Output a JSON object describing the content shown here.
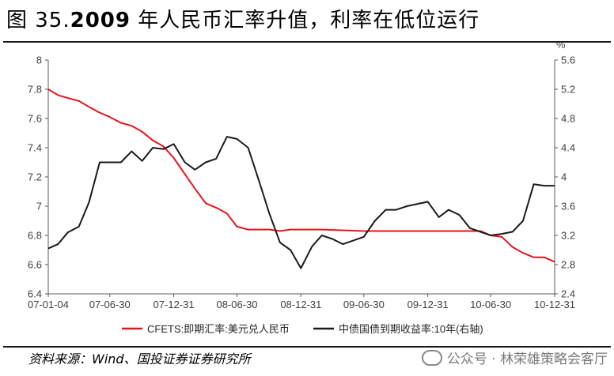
{
  "header": {
    "title_prefix": "图 35.",
    "title_year": "2009",
    "title_rest": " 年人民币汇率升值，利率在低位运行"
  },
  "footer": {
    "source": "资料来源：Wind、国投证券证券研究所",
    "watermark": "公众号 · 林荣雄策略会客厅"
  },
  "chart_data": {
    "type": "line",
    "x_ticks": [
      "07-01-04",
      "07-06-30",
      "07-12-31",
      "08-06-30",
      "08-12-31",
      "09-06-30",
      "09-12-31",
      "10-06-30",
      "10-12-31"
    ],
    "y_left": {
      "ticks": [
        "8",
        "7.8",
        "7.6",
        "7.4",
        "7.2",
        "7",
        "6.8",
        "6.6",
        "6.4"
      ],
      "range": [
        6.4,
        8.0
      ]
    },
    "y_right": {
      "unit": "%",
      "ticks": [
        "5.6",
        "5.2",
        "4.8",
        "4.4",
        "4",
        "3.6",
        "3.2",
        "2.8",
        "2.4"
      ],
      "range": [
        2.4,
        5.6
      ]
    },
    "grid": false,
    "legend_position": "bottom",
    "series": [
      {
        "name": "CFETS:即期汇率:美元兑人民币",
        "axis": "left",
        "color": "#e8141c",
        "points": [
          [
            "07-01-04",
            7.8
          ],
          [
            "07-02-01",
            7.76
          ],
          [
            "07-03-01",
            7.74
          ],
          [
            "07-04-02",
            7.72
          ],
          [
            "07-05-01",
            7.68
          ],
          [
            "07-06-01",
            7.64
          ],
          [
            "07-06-30",
            7.61
          ],
          [
            "07-08-01",
            7.57
          ],
          [
            "07-09-01",
            7.55
          ],
          [
            "07-10-01",
            7.51
          ],
          [
            "07-11-01",
            7.45
          ],
          [
            "07-12-01",
            7.41
          ],
          [
            "07-12-31",
            7.33
          ],
          [
            "08-02-01",
            7.22
          ],
          [
            "08-03-01",
            7.12
          ],
          [
            "08-04-01",
            7.02
          ],
          [
            "08-05-01",
            6.99
          ],
          [
            "08-06-01",
            6.95
          ],
          [
            "08-06-30",
            6.86
          ],
          [
            "08-08-01",
            6.84
          ],
          [
            "08-09-01",
            6.84
          ],
          [
            "08-10-01",
            6.84
          ],
          [
            "08-11-01",
            6.83
          ],
          [
            "08-12-01",
            6.84
          ],
          [
            "08-12-31",
            6.84
          ],
          [
            "09-03-01",
            6.84
          ],
          [
            "09-06-30",
            6.83
          ],
          [
            "09-09-01",
            6.83
          ],
          [
            "09-12-31",
            6.83
          ],
          [
            "10-03-01",
            6.83
          ],
          [
            "10-06-01",
            6.83
          ],
          [
            "10-06-30",
            6.8
          ],
          [
            "10-08-01",
            6.79
          ],
          [
            "10-09-01",
            6.72
          ],
          [
            "10-10-01",
            6.68
          ],
          [
            "10-11-01",
            6.65
          ],
          [
            "10-12-01",
            6.65
          ],
          [
            "10-12-31",
            6.62
          ]
        ]
      },
      {
        "name": "中债国债到期收益率:10年(右轴)",
        "axis": "right",
        "color": "#1a1a1a",
        "points": [
          [
            "07-01-04",
            3.02
          ],
          [
            "07-02-01",
            3.08
          ],
          [
            "07-03-01",
            3.24
          ],
          [
            "07-04-02",
            3.32
          ],
          [
            "07-05-01",
            3.65
          ],
          [
            "07-06-01",
            4.2
          ],
          [
            "07-06-30",
            4.2
          ],
          [
            "07-08-01",
            4.2
          ],
          [
            "07-09-01",
            4.35
          ],
          [
            "07-10-01",
            4.22
          ],
          [
            "07-11-01",
            4.4
          ],
          [
            "07-12-01",
            4.38
          ],
          [
            "07-12-31",
            4.45
          ],
          [
            "08-02-01",
            4.2
          ],
          [
            "08-03-01",
            4.1
          ],
          [
            "08-04-01",
            4.2
          ],
          [
            "08-05-01",
            4.25
          ],
          [
            "08-06-01",
            4.55
          ],
          [
            "08-06-30",
            4.52
          ],
          [
            "08-08-01",
            4.4
          ],
          [
            "08-09-01",
            3.95
          ],
          [
            "08-10-01",
            3.5
          ],
          [
            "08-11-01",
            3.1
          ],
          [
            "08-12-01",
            3.0
          ],
          [
            "08-12-31",
            2.75
          ],
          [
            "09-02-01",
            3.05
          ],
          [
            "09-03-01",
            3.2
          ],
          [
            "09-04-01",
            3.15
          ],
          [
            "09-05-01",
            3.08
          ],
          [
            "09-06-30",
            3.18
          ],
          [
            "09-08-01",
            3.4
          ],
          [
            "09-09-01",
            3.55
          ],
          [
            "09-10-01",
            3.55
          ],
          [
            "09-11-01",
            3.6
          ],
          [
            "09-12-31",
            3.66
          ],
          [
            "10-02-01",
            3.45
          ],
          [
            "10-03-01",
            3.55
          ],
          [
            "10-04-01",
            3.48
          ],
          [
            "10-05-01",
            3.3
          ],
          [
            "10-06-30",
            3.2
          ],
          [
            "10-08-01",
            3.22
          ],
          [
            "10-09-01",
            3.25
          ],
          [
            "10-10-01",
            3.4
          ],
          [
            "10-11-01",
            3.9
          ],
          [
            "10-12-01",
            3.88
          ],
          [
            "10-12-31",
            3.88
          ]
        ]
      }
    ]
  }
}
